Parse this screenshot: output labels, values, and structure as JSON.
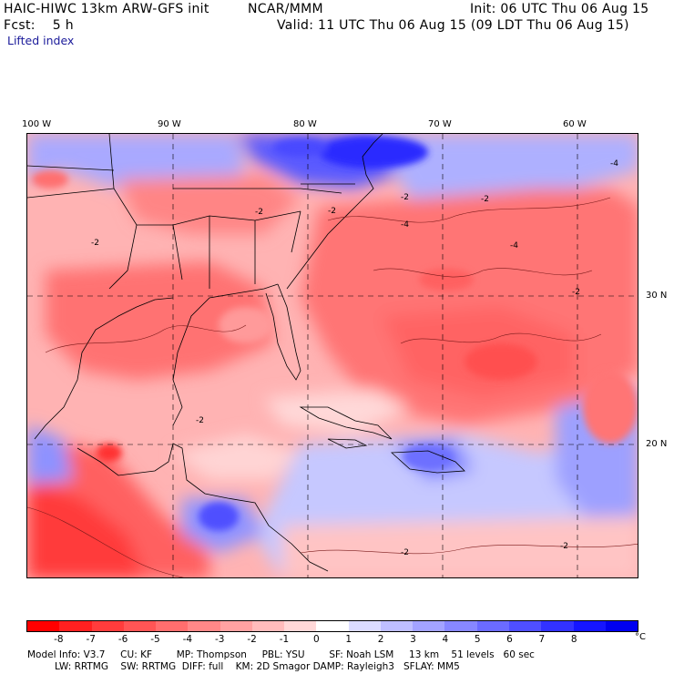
{
  "header": {
    "model_title": "HAIC-HIWC 13km ARW-GFS init",
    "org": "NCAR/MMM",
    "init": "Init: 06 UTC Thu 06 Aug 15",
    "fcst": "Fcst:    5 h",
    "valid": "Valid: 11 UTC Thu 06 Aug 15 (09 LDT Thu 06 Aug 15)",
    "field": "Lifted index"
  },
  "map": {
    "longitude_labels": [
      "100 W",
      "90 W",
      "80 W",
      "70 W",
      "60 W"
    ],
    "latitude_labels": [
      "30 N",
      "20 N"
    ],
    "contour_labels": [
      "-2",
      "-2",
      "-2",
      "-2",
      "-2",
      "-2",
      "-4",
      "-4",
      "-4",
      "-2",
      "-2",
      "-2"
    ]
  },
  "colorbar": {
    "labels": [
      "-8",
      "-7",
      "-6",
      "-5",
      "-4",
      "-3",
      "-2",
      "-1",
      "0",
      "1",
      "2",
      "3",
      "4",
      "5",
      "6",
      "7",
      "8"
    ],
    "unit": "°C",
    "colors": [
      "#ff0000",
      "#ff2020",
      "#ff3c3c",
      "#ff5555",
      "#ff6e6e",
      "#ff8888",
      "#ffa2a2",
      "#ffbcbc",
      "#ffd8d8",
      "#ffffff",
      "#dcdcff",
      "#bfbfff",
      "#a3a3ff",
      "#8787ff",
      "#6b6bff",
      "#4f4fff",
      "#3232ff",
      "#1515ff",
      "#0000f0"
    ]
  },
  "model_info": {
    "line1": "Model Info: V3.7     CU: KF        MP: Thompson     PBL: YSU        SF: Noah LSM     13 km    51 levels   60 sec",
    "line2": "         LW: RRTMG    SW: RRTMG  DIFF: full    KM: 2D Smagor DAMP: Rayleigh3   SFLAY: MM5"
  }
}
